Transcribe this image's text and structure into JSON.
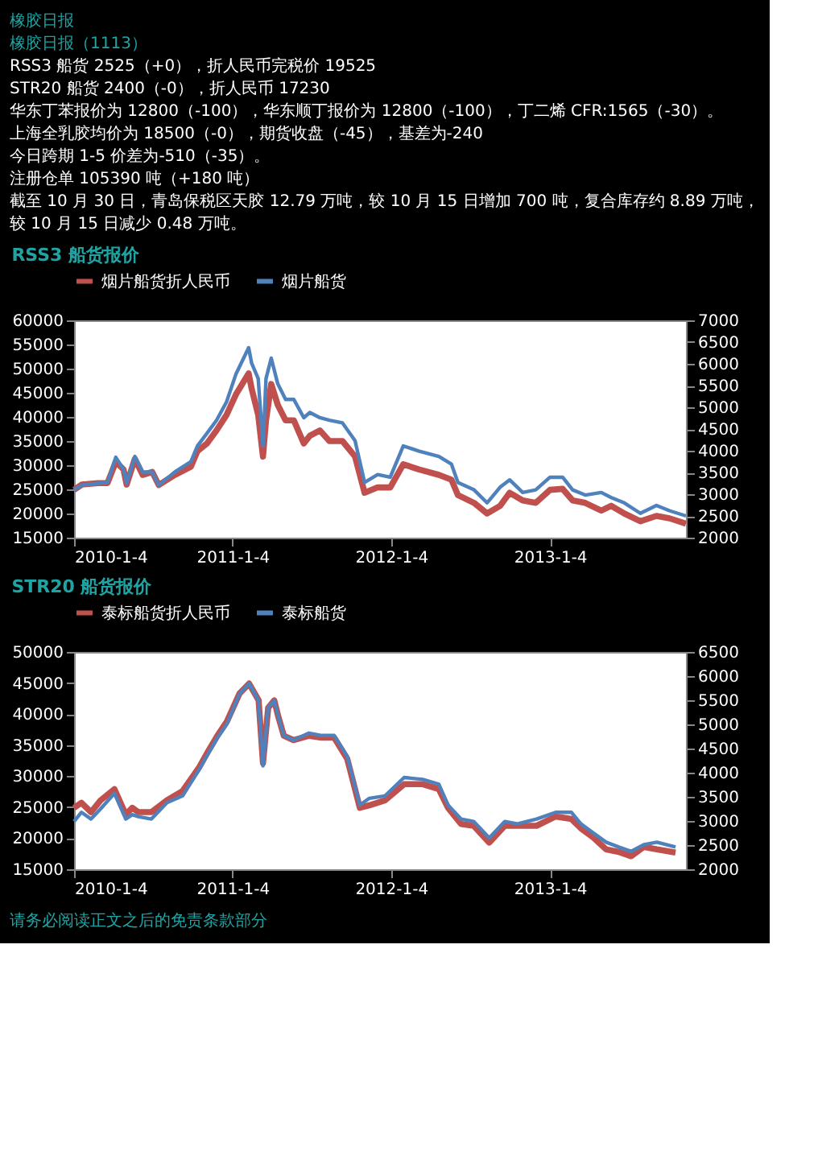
{
  "chart_data": [
    {
      "type": "line",
      "title": "RSS3 船货报价",
      "annotations": [
        "橡胶日报",
        "橡胶日报（1113）",
        "RSS3 船货 2525（+0），折人民币完税价 19525",
        "STR20 船货 2400（-0），折人民币 17230",
        "华东丁苯报价为 12800（-100），华东顺丁报价为 12800（-100），丁二烯 CFR:1565（-30）。",
        "上海全乳胶均价为 18500（-0），期货收盘（-45），基差为-240",
        "今日跨期 1-5 价差为-510（-35）。",
        "注册仓单 105390 吨（+180 吨）",
        "截至 10 月 30 日，青岛保税区天胶 12.79 万吨，较 10 月 15 日增加 700 吨，复合库存约 8.89 万吨，",
        "较 10 月 15 日减少 0.48 万吨。"
      ],
      "x": [
        "2010-01-04",
        "2010-01-22",
        "2010-02-28",
        "2010-03-22",
        "2010-04-10",
        "2010-04-28",
        "2010-05-05",
        "2010-05-24",
        "2010-06-11",
        "2010-07-03",
        "2010-07-18",
        "2010-08-24",
        "2010-09-30",
        "2010-10-15",
        "2010-11-06",
        "2010-11-28",
        "2010-12-21",
        "2011-01-12",
        "2011-02-10",
        "2011-02-17",
        "2011-03-04",
        "2011-03-15",
        "2011-03-22",
        "2011-04-03",
        "2011-04-18",
        "2011-05-06",
        "2011-05-25",
        "2011-06-17",
        "2011-07-01",
        "2011-07-24",
        "2011-08-15",
        "2011-09-14",
        "2011-10-13",
        "2011-11-04",
        "2011-12-04",
        "2012-01-02",
        "2012-02-01",
        "2012-03-09",
        "2012-04-23",
        "2012-05-22",
        "2012-06-06",
        "2012-07-13",
        "2012-08-12",
        "2012-09-11",
        "2012-10-03",
        "2012-11-02",
        "2012-12-02",
        "2013-01-04",
        "2013-02-02",
        "2013-02-25",
        "2013-03-26",
        "2013-05-02",
        "2013-05-25",
        "2013-06-24",
        "2013-07-31",
        "2013-09-06",
        "2013-10-06",
        "2013-11-13"
      ],
      "series": [
        {
          "name": "烟片船货折人民币",
          "color": "#c0504d",
          "values": [
            24900,
            26000,
            26300,
            26300,
            30700,
            29100,
            26000,
            31300,
            28000,
            28600,
            25900,
            28000,
            29700,
            32900,
            34500,
            37200,
            40400,
            44700,
            49000,
            45800,
            40400,
            31800,
            39300,
            46800,
            42500,
            39300,
            39300,
            34500,
            36100,
            37200,
            35000,
            35000,
            31800,
            24300,
            25400,
            25400,
            30200,
            29100,
            28000,
            27000,
            23800,
            22200,
            20000,
            21600,
            24300,
            22700,
            22200,
            24900,
            25100,
            22700,
            22200,
            20600,
            21600,
            20000,
            18400,
            19500,
            19000,
            17900
          ]
        },
        {
          "name": "烟片船货",
          "color": "#4f81bd",
          "axis": "y2",
          "values": [
            3100,
            3210,
            3250,
            3270,
            3850,
            3570,
            3250,
            3870,
            3510,
            3510,
            3210,
            3510,
            3750,
            4110,
            4400,
            4700,
            5120,
            5770,
            6370,
            6010,
            5660,
            4110,
            5660,
            6130,
            5540,
            5180,
            5180,
            4760,
            4880,
            4760,
            4700,
            4640,
            4230,
            3270,
            3450,
            3390,
            4110,
            3990,
            3870,
            3690,
            3270,
            3100,
            2800,
            3160,
            3330,
            3040,
            3100,
            3390,
            3390,
            3100,
            2980,
            3040,
            2920,
            2800,
            2560,
            2740,
            2620,
            2500
          ]
        }
      ],
      "xlim": [
        "2010-01-04",
        "2013-11-13"
      ],
      "xticks": [
        {
          "value": "2010-01-04",
          "label": "2010-1-4"
        },
        {
          "value": "2011-01-04",
          "label": "2011-1-4"
        },
        {
          "value": "2012-01-04",
          "label": "2012-1-4"
        },
        {
          "value": "2013-01-04",
          "label": "2013-1-4"
        }
      ],
      "ylim": [
        15000,
        60000
      ],
      "yticks": [
        15000,
        20000,
        25000,
        30000,
        35000,
        40000,
        45000,
        50000,
        55000,
        60000
      ],
      "y2lim": [
        2000,
        7000
      ],
      "y2ticks": [
        2000,
        2500,
        3000,
        3500,
        4000,
        4500,
        5000,
        5500,
        6000,
        6500,
        7000
      ],
      "legend": "top"
    },
    {
      "type": "line",
      "title": "STR20 船货报价",
      "annotations": [
        "请务必阅读正文之后的免责条款部分"
      ],
      "x": [
        "2010-01-04",
        "2010-01-21",
        "2010-02-12",
        "2010-03-06",
        "2010-04-07",
        "2010-05-03",
        "2010-05-18",
        "2010-06-01",
        "2010-07-01",
        "2010-08-06",
        "2010-09-11",
        "2010-10-18",
        "2010-11-08",
        "2010-11-30",
        "2010-12-22",
        "2011-01-20",
        "2011-02-11",
        "2011-03-05",
        "2011-03-15",
        "2011-03-27",
        "2011-04-10",
        "2011-04-18",
        "2011-05-02",
        "2011-05-24",
        "2011-06-29",
        "2011-07-28",
        "2011-08-26",
        "2011-09-25",
        "2011-10-24",
        "2011-11-15",
        "2011-12-21",
        "2012-02-03",
        "2012-03-17",
        "2012-04-23",
        "2012-05-14",
        "2012-06-13",
        "2012-07-12",
        "2012-08-17",
        "2012-09-22",
        "2012-10-21",
        "2012-12-04",
        "2013-01-17",
        "2013-02-22",
        "2013-03-16",
        "2013-04-14",
        "2013-05-13",
        "2013-06-11",
        "2013-07-10",
        "2013-08-08",
        "2013-09-07",
        "2013-10-20"
      ],
      "series": [
        {
          "name": "泰标船货折人民币",
          "color": "#c0504d",
          "values": [
            24900,
            25700,
            24200,
            26100,
            27900,
            23800,
            24900,
            24200,
            24200,
            26100,
            27600,
            31300,
            33900,
            36500,
            38800,
            43300,
            44900,
            42200,
            32100,
            41000,
            42200,
            39900,
            36500,
            35800,
            36500,
            36200,
            36200,
            32800,
            24900,
            25300,
            26100,
            28700,
            28700,
            27900,
            24900,
            22300,
            22000,
            19300,
            22000,
            22000,
            22000,
            23500,
            23100,
            21600,
            20100,
            18200,
            17800,
            17100,
            18600,
            18200,
            17700
          ]
        },
        {
          "name": "泰标船货",
          "color": "#4f81bd",
          "axis": "y2",
          "values": [
            2990,
            3180,
            3040,
            3250,
            3570,
            3040,
            3130,
            3090,
            3040,
            3380,
            3520,
            4050,
            4380,
            4720,
            5010,
            5630,
            5850,
            5490,
            4140,
            5350,
            5490,
            5200,
            4770,
            4670,
            4820,
            4770,
            4770,
            4340,
            3330,
            3470,
            3520,
            3900,
            3860,
            3760,
            3330,
            3040,
            2990,
            2650,
            2990,
            2940,
            3040,
            3180,
            3180,
            2940,
            2750,
            2560,
            2460,
            2370,
            2510,
            2560,
            2460
          ]
        }
      ],
      "xlim": [
        "2010-01-04",
        "2013-11-13"
      ],
      "xticks": [
        {
          "value": "2010-01-04",
          "label": "2010-1-4"
        },
        {
          "value": "2011-01-04",
          "label": "2011-1-4"
        },
        {
          "value": "2012-01-04",
          "label": "2012-1-4"
        },
        {
          "value": "2013-01-04",
          "label": "2013-1-4"
        }
      ],
      "ylim": [
        15000,
        50000
      ],
      "yticks": [
        15000,
        20000,
        25000,
        30000,
        35000,
        40000,
        45000,
        50000
      ],
      "y2lim": [
        2000,
        6500
      ],
      "y2ticks": [
        2000,
        2500,
        3000,
        3500,
        4000,
        4500,
        5000,
        5500,
        6000,
        6500
      ],
      "legend": "top"
    }
  ]
}
